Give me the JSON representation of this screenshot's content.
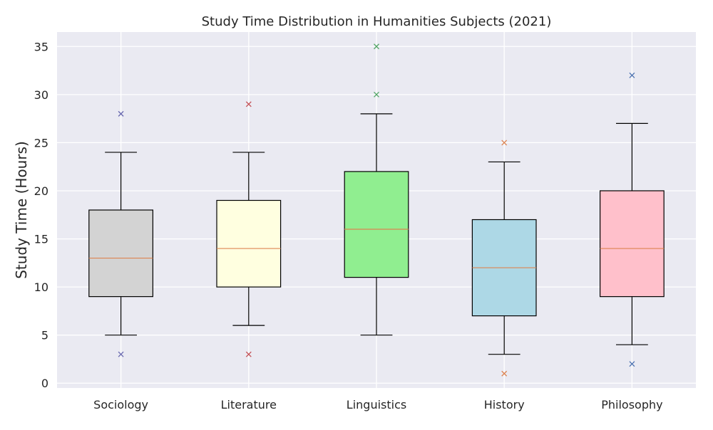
{
  "chart_data": {
    "type": "box",
    "title": "Study Time Distribution in Humanities Subjects (2021)",
    "xlabel": "",
    "ylabel": "Study Time (Hours)",
    "ylim": [
      -0.5,
      36.5
    ],
    "yticks": [
      0,
      5,
      10,
      15,
      20,
      25,
      30,
      35
    ],
    "grid": true,
    "background": "#eaeaf2",
    "grid_color": "#ffffff",
    "median_color": "#dd8452",
    "categories": [
      "Sociology",
      "Literature",
      "Linguistics",
      "History",
      "Philosophy"
    ],
    "boxes": [
      {
        "category": "Sociology",
        "whisker_low": 5,
        "q1": 9,
        "median": 13,
        "q3": 18,
        "whisker_high": 24,
        "outliers": [
          3,
          28
        ],
        "fill": "#d3d3d3",
        "outlier_color": "#6a6ab0"
      },
      {
        "category": "Literature",
        "whisker_low": 6,
        "q1": 10,
        "median": 14,
        "q3": 19,
        "whisker_high": 24,
        "outliers": [
          3,
          29
        ],
        "fill": "#ffffe0",
        "outlier_color": "#c44e52"
      },
      {
        "category": "Linguistics",
        "whisker_low": 5,
        "q1": 11,
        "median": 16,
        "q3": 22,
        "whisker_high": 28,
        "outliers": [
          30,
          35
        ],
        "fill": "#90ee90",
        "outlier_color": "#55a868"
      },
      {
        "category": "History",
        "whisker_low": 3,
        "q1": 7,
        "median": 12,
        "q3": 17,
        "whisker_high": 23,
        "outliers": [
          1,
          25
        ],
        "fill": "#add8e6",
        "outlier_color": "#dd8452"
      },
      {
        "category": "Philosophy",
        "whisker_low": 4,
        "q1": 9,
        "median": 14,
        "q3": 20,
        "whisker_high": 27,
        "outliers": [
          2,
          32
        ],
        "fill": "#ffc0cb",
        "outlier_color": "#4c72b0"
      }
    ]
  }
}
